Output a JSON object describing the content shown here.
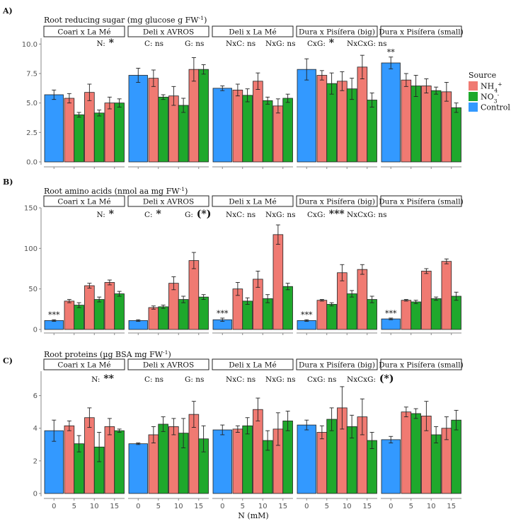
{
  "colors": {
    "control": "#3399ff",
    "nh4": "#f07a72",
    "no3": "#1fa82c"
  },
  "legend": {
    "title": "Source",
    "items": [
      {
        "key": "nh4",
        "label": "NH4+"
      },
      {
        "key": "no3",
        "label": "NO3-"
      },
      {
        "key": "control",
        "label": "Control"
      }
    ]
  },
  "xlabel": "N (mM)",
  "chart_data": [
    {
      "type": "bar",
      "panel": "A)",
      "title": "Root reducing sugar (mg glucose g FW-1)",
      "ylim": [
        0,
        10.5
      ],
      "yticks": [
        "0.0",
        "2.5",
        "5.0",
        "7.5",
        "10.0"
      ],
      "ytick_values": [
        0,
        2.5,
        5,
        7.5,
        10
      ],
      "x_categories": [
        "0",
        "5",
        "10",
        "15"
      ],
      "facets": [
        {
          "name": "Coari x La Mé",
          "control": [
            5.7,
            0.4
          ],
          "nh4": [
            [
              5.4,
              0.4
            ],
            [
              5.9,
              0.7
            ],
            [
              5.0,
              0.5
            ]
          ],
          "no3": [
            [
              4.0,
              0.2
            ],
            [
              4.15,
              0.25
            ],
            [
              5.0,
              0.35
            ]
          ],
          "control_sig": ""
        },
        {
          "name": "Deli x AVROS",
          "control": [
            7.35,
            0.6
          ],
          "nh4": [
            [
              7.1,
              0.7
            ],
            [
              5.6,
              0.8
            ],
            [
              7.85,
              1.0
            ]
          ],
          "no3": [
            [
              5.5,
              0.2
            ],
            [
              4.8,
              0.6
            ],
            [
              7.85,
              0.4
            ]
          ],
          "control_sig": ""
        },
        {
          "name": "Deli x La Mé",
          "control": [
            6.25,
            0.2
          ],
          "nh4": [
            [
              6.1,
              0.5
            ],
            [
              6.85,
              0.7
            ],
            [
              4.75,
              0.6
            ]
          ],
          "no3": [
            [
              5.65,
              0.55
            ],
            [
              5.2,
              0.3
            ],
            [
              5.4,
              0.35
            ]
          ],
          "control_sig": ""
        },
        {
          "name": "Dura x Pisífera (big)",
          "control": [
            7.85,
            0.9
          ],
          "nh4": [
            [
              7.35,
              0.4
            ],
            [
              6.85,
              0.8
            ],
            [
              8.05,
              1.0
            ]
          ],
          "no3": [
            [
              6.65,
              0.9
            ],
            [
              6.2,
              0.9
            ],
            [
              5.25,
              0.6
            ]
          ],
          "control_sig": ""
        },
        {
          "name": "Dura x Pisífera (small)",
          "control": [
            8.4,
            0.5
          ],
          "nh4": [
            [
              6.95,
              0.55
            ],
            [
              6.45,
              0.6
            ],
            [
              5.95,
              0.8
            ]
          ],
          "no3": [
            [
              6.45,
              0.9
            ],
            [
              6.05,
              0.3
            ],
            [
              4.6,
              0.4
            ]
          ],
          "control_sig": "**"
        }
      ],
      "annotations": [
        {
          "text": "N:",
          "star": "*"
        },
        {
          "text": "C: ns",
          "star": ""
        },
        {
          "text": "G: ns",
          "star": ""
        },
        {
          "text": "NxC: ns",
          "star": ""
        },
        {
          "text": "NxG: ns",
          "star": ""
        },
        {
          "text": "CxG:",
          "star": "*"
        },
        {
          "text": "NxCxG: ns",
          "star": ""
        }
      ]
    },
    {
      "type": "bar",
      "panel": "B)",
      "title": "Root amino acids (nmol aa mg FW-1)",
      "ylim": [
        0,
        150
      ],
      "yticks": [
        "0",
        "50",
        "100",
        "150"
      ],
      "ytick_values": [
        0,
        50,
        100,
        150
      ],
      "x_categories": [
        "0",
        "5",
        "10",
        "15"
      ],
      "facets": [
        {
          "name": "Coari x La Mé",
          "control": [
            11,
            1
          ],
          "nh4": [
            [
              35,
              2
            ],
            [
              54,
              3
            ],
            [
              58,
              3
            ]
          ],
          "no3": [
            [
              30,
              3
            ],
            [
              37,
              3
            ],
            [
              44,
              3
            ]
          ],
          "control_sig": "***"
        },
        {
          "name": "Deli x AVROS",
          "control": [
            11,
            1
          ],
          "nh4": [
            [
              27,
              2
            ],
            [
              57,
              8
            ],
            [
              85,
              10
            ]
          ],
          "no3": [
            [
              28,
              2
            ],
            [
              37,
              4
            ],
            [
              40,
              3
            ]
          ],
          "control_sig": ""
        },
        {
          "name": "Deli x La Mé",
          "control": [
            12,
            2
          ],
          "nh4": [
            [
              50,
              8
            ],
            [
              62,
              10
            ],
            [
              117,
              12
            ]
          ],
          "no3": [
            [
              35,
              4
            ],
            [
              38,
              5
            ],
            [
              53,
              4
            ]
          ],
          "control_sig": "***"
        },
        {
          "name": "Dura x Pisífera (big)",
          "control": [
            11,
            1
          ],
          "nh4": [
            [
              36,
              1
            ],
            [
              70,
              10
            ],
            [
              74,
              6
            ]
          ],
          "no3": [
            [
              31,
              2
            ],
            [
              44,
              4
            ],
            [
              37,
              4
            ]
          ],
          "control_sig": "***"
        },
        {
          "name": "Dura x Pisífera (small)",
          "control": [
            13,
            1
          ],
          "nh4": [
            [
              36,
              1
            ],
            [
              72,
              3
            ],
            [
              84,
              3
            ]
          ],
          "no3": [
            [
              34,
              2
            ],
            [
              38,
              2
            ],
            [
              41,
              5
            ]
          ],
          "control_sig": "***"
        }
      ],
      "annotations": [
        {
          "text": "N:",
          "star": "*"
        },
        {
          "text": "C:",
          "star": "*"
        },
        {
          "text": "G:",
          "star": "(*)"
        },
        {
          "text": "NxC: ns",
          "star": ""
        },
        {
          "text": "NxG: ns",
          "star": ""
        },
        {
          "text": "CxG:",
          "star": "***"
        },
        {
          "text": "NxCxG: ns",
          "star": ""
        }
      ]
    },
    {
      "type": "bar",
      "panel": "C)",
      "title": "Root proteins (µg BSA mg FW-1)",
      "ylim": [
        0,
        7.5
      ],
      "yticks": [
        "0",
        "2",
        "4",
        "6"
      ],
      "ytick_values": [
        0,
        2,
        4,
        6
      ],
      "x_categories": [
        "0",
        "5",
        "10",
        "15"
      ],
      "facets": [
        {
          "name": "Coari x La Mé",
          "control": [
            3.85,
            0.65
          ],
          "nh4": [
            [
              4.15,
              0.3
            ],
            [
              4.65,
              0.6
            ],
            [
              4.1,
              0.5
            ]
          ],
          "no3": [
            [
              3.05,
              0.5
            ],
            [
              2.85,
              0.9
            ],
            [
              3.85,
              0.1
            ]
          ],
          "control_sig": ""
        },
        {
          "name": "Deli x AVROS",
          "control": [
            3.05,
            0.05
          ],
          "nh4": [
            [
              3.6,
              0.5
            ],
            [
              4.1,
              0.5
            ],
            [
              4.85,
              0.8
            ]
          ],
          "no3": [
            [
              4.25,
              0.45
            ],
            [
              3.7,
              0.9
            ],
            [
              3.35,
              0.8
            ]
          ],
          "control_sig": ""
        },
        {
          "name": "Deli x La Mé",
          "control": [
            3.9,
            0.3
          ],
          "nh4": [
            [
              3.95,
              0.2
            ],
            [
              5.15,
              0.7
            ],
            [
              3.95,
              1.0
            ]
          ],
          "no3": [
            [
              4.15,
              0.5
            ],
            [
              3.25,
              0.6
            ],
            [
              4.45,
              0.6
            ]
          ],
          "control_sig": ""
        },
        {
          "name": "Dura x Pisífera (big)",
          "control": [
            4.2,
            0.3
          ],
          "nh4": [
            [
              3.75,
              0.4
            ],
            [
              5.25,
              1.3
            ],
            [
              4.7,
              1.1
            ]
          ],
          "no3": [
            [
              4.55,
              0.7
            ],
            [
              4.1,
              0.7
            ],
            [
              3.25,
              0.5
            ]
          ],
          "control_sig": ""
        },
        {
          "name": "Dura x Pisífera (small)",
          "control": [
            3.3,
            0.2
          ],
          "nh4": [
            [
              5.0,
              0.3
            ],
            [
              4.75,
              0.9
            ],
            [
              4.0,
              0.7
            ]
          ],
          "no3": [
            [
              4.9,
              0.3
            ],
            [
              3.6,
              0.5
            ],
            [
              4.5,
              0.6
            ]
          ],
          "control_sig": ""
        }
      ],
      "annotations": [
        {
          "text": "N:",
          "star": "**"
        },
        {
          "text": "C: ns",
          "star": ""
        },
        {
          "text": "G: ns",
          "star": ""
        },
        {
          "text": "NxC: ns",
          "star": ""
        },
        {
          "text": "NxG: ns",
          "star": ""
        },
        {
          "text": "CxG: ns",
          "star": ""
        },
        {
          "text": "NxCxG:",
          "star": "(*)"
        }
      ]
    }
  ]
}
